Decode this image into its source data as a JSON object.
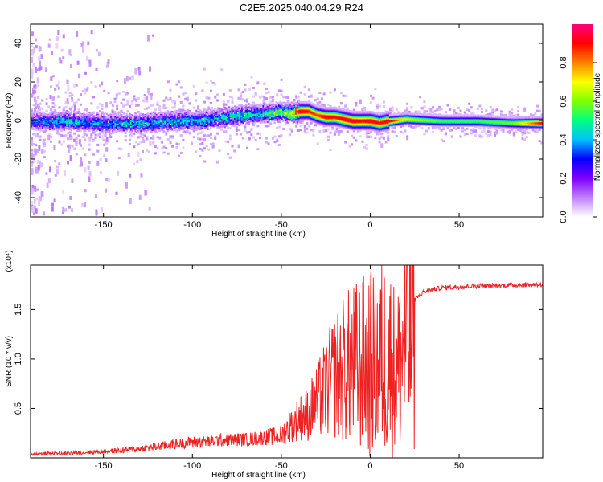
{
  "title": "C2E5.2025.040.04.29.R24",
  "chart_data": [
    {
      "type": "heatmap",
      "xlabel": "Height of straight line (km)",
      "ylabel": "Frequency (Hz)",
      "xlim": [
        -191,
        97
      ],
      "ylim": [
        -50,
        50
      ],
      "xticks": [
        -150,
        -100,
        -50,
        0,
        50
      ],
      "yticks": [
        -40,
        -20,
        0,
        20,
        40
      ],
      "colorbar": {
        "label": "Normalized spectral amplitude",
        "range": [
          0,
          1
        ],
        "ticks": [
          "0.0",
          "0.2",
          "0.4",
          "0.6",
          "0.8"
        ],
        "colors": [
          "#ffffff",
          "#c080ff",
          "#8000ff",
          "#0000ff",
          "#00c0ff",
          "#00ff80",
          "#80ff00",
          "#ffff00",
          "#ff8000",
          "#ff0000",
          "#ff0080"
        ]
      },
      "ridge": {
        "x": [
          -191,
          -170,
          -150,
          -130,
          -110,
          -90,
          -75,
          -60,
          -50,
          -45,
          -40,
          -35,
          -30,
          -25,
          -20,
          -15,
          -10,
          -5,
          0,
          5,
          10,
          20,
          40,
          60,
          80,
          97
        ],
        "center_freq": [
          0,
          0,
          -1,
          -1,
          0,
          1,
          3,
          4,
          5,
          4,
          5,
          5,
          3,
          2,
          2,
          1,
          0,
          0,
          0,
          -1,
          0,
          1,
          0,
          0,
          -1,
          -1
        ],
        "peak_amplitude": [
          0.35,
          0.45,
          0.4,
          0.45,
          0.45,
          0.45,
          0.5,
          0.5,
          0.6,
          0.7,
          0.95,
          0.9,
          0.85,
          0.95,
          0.9,
          0.95,
          0.95,
          0.9,
          0.95,
          0.9,
          0.95,
          0.7,
          0.55,
          0.55,
          0.6,
          0.95
        ]
      }
    },
    {
      "type": "line",
      "xlabel": "Height of straight line (km)",
      "ylabel": "SNR (10 * v/v)",
      "multiplier": "(x10⁴)",
      "xlim": [
        -191,
        97
      ],
      "ylim": [
        0,
        1.95
      ],
      "xticks": [
        -150,
        -100,
        -50,
        0,
        50
      ],
      "yticks": [
        0.5,
        1.0,
        1.5
      ],
      "yticklabels": [
        "0.5",
        "1.0",
        "1.5"
      ],
      "line_color": "#ee2222",
      "series": [
        {
          "x": [
            -191,
            -180,
            -170,
            -160,
            -150,
            -140,
            -130,
            -120,
            -110,
            -100,
            -90,
            -80,
            -70,
            -60,
            -50,
            -45,
            -40,
            -35,
            -30,
            -25,
            -20,
            -15,
            -10,
            -5,
            0,
            5,
            10,
            13,
            15,
            20,
            25,
            30,
            40,
            50,
            60,
            70,
            80,
            90,
            97
          ],
          "values": [
            0.04,
            0.05,
            0.05,
            0.06,
            0.07,
            0.08,
            0.1,
            0.12,
            0.15,
            0.17,
            0.18,
            0.2,
            0.2,
            0.22,
            0.25,
            0.35,
            0.45,
            0.5,
            0.65,
            0.8,
            0.95,
            1.05,
            1.1,
            1.12,
            1.15,
            1.2,
            1.25,
            1.1,
            1.0,
            1.45,
            1.6,
            1.68,
            1.72,
            1.73,
            1.74,
            1.74,
            1.75,
            1.75,
            1.76
          ]
        }
      ]
    }
  ]
}
